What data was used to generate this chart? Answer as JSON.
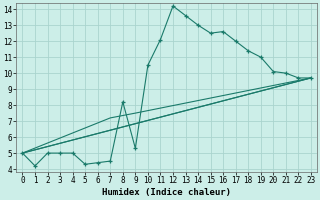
{
  "xlabel": "Humidex (Indice chaleur)",
  "bg_color": "#cceee8",
  "grid_color": "#aad4ce",
  "line_color": "#1a7a6a",
  "xlim": [
    -0.5,
    23.5
  ],
  "ylim": [
    3.8,
    14.4
  ],
  "xticks": [
    0,
    1,
    2,
    3,
    4,
    5,
    6,
    7,
    8,
    9,
    10,
    11,
    12,
    13,
    14,
    15,
    16,
    17,
    18,
    19,
    20,
    21,
    22,
    23
  ],
  "yticks": [
    4,
    5,
    6,
    7,
    8,
    9,
    10,
    11,
    12,
    13,
    14
  ],
  "main_x": [
    0,
    1,
    2,
    3,
    4,
    5,
    6,
    7,
    8,
    9,
    10,
    11,
    12,
    13,
    14,
    15,
    16,
    17,
    18,
    19,
    20,
    21,
    22,
    23
  ],
  "main_y": [
    5.0,
    4.2,
    5.0,
    5.0,
    5.0,
    4.3,
    4.4,
    4.5,
    8.2,
    5.3,
    10.5,
    12.1,
    14.2,
    13.6,
    13.0,
    12.5,
    12.6,
    12.0,
    11.4,
    11.0,
    10.1,
    10.0,
    9.7,
    9.7
  ],
  "line1_x": [
    0,
    23
  ],
  "line1_y": [
    5.0,
    9.7
  ],
  "line2_x": [
    0,
    23
  ],
  "line2_y": [
    5.0,
    9.7
  ],
  "line3_x": [
    0,
    7,
    9,
    23
  ],
  "line3_y": [
    5.0,
    7.2,
    7.5,
    9.7
  ]
}
